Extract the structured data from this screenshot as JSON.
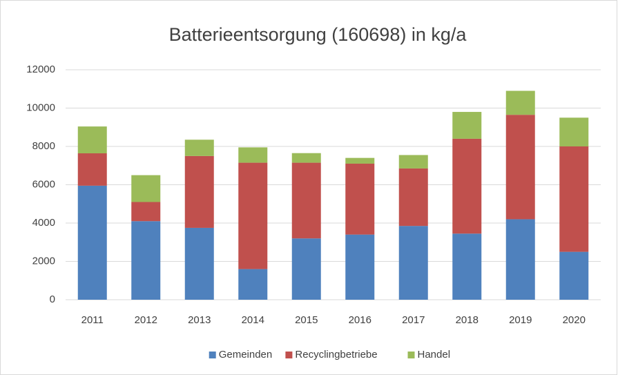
{
  "chart_data": {
    "type": "bar",
    "stacked": true,
    "title": "Batterieentsorgung (160698) in kg/a",
    "categories": [
      "2011",
      "2012",
      "2013",
      "2014",
      "2015",
      "2016",
      "2017",
      "2018",
      "2019",
      "2020"
    ],
    "series": [
      {
        "name": "Gemeinden",
        "color": "#4f81bd",
        "values": [
          5950,
          4100,
          3750,
          1600,
          3200,
          3400,
          3850,
          3450,
          4200,
          2500
        ]
      },
      {
        "name": "Recyclingbetriebe",
        "color": "#c0504d",
        "values": [
          1690,
          1000,
          3750,
          5550,
          3950,
          3700,
          3000,
          4950,
          5450,
          5500
        ]
      },
      {
        "name": "Handel",
        "color": "#9bbb59",
        "values": [
          1400,
          1400,
          850,
          800,
          500,
          300,
          700,
          1400,
          1250,
          1500
        ]
      }
    ],
    "ylim": [
      0,
      12000
    ],
    "yticks": [
      0,
      2000,
      4000,
      6000,
      8000,
      10000,
      12000
    ],
    "grid": true,
    "legend": "bottom"
  }
}
